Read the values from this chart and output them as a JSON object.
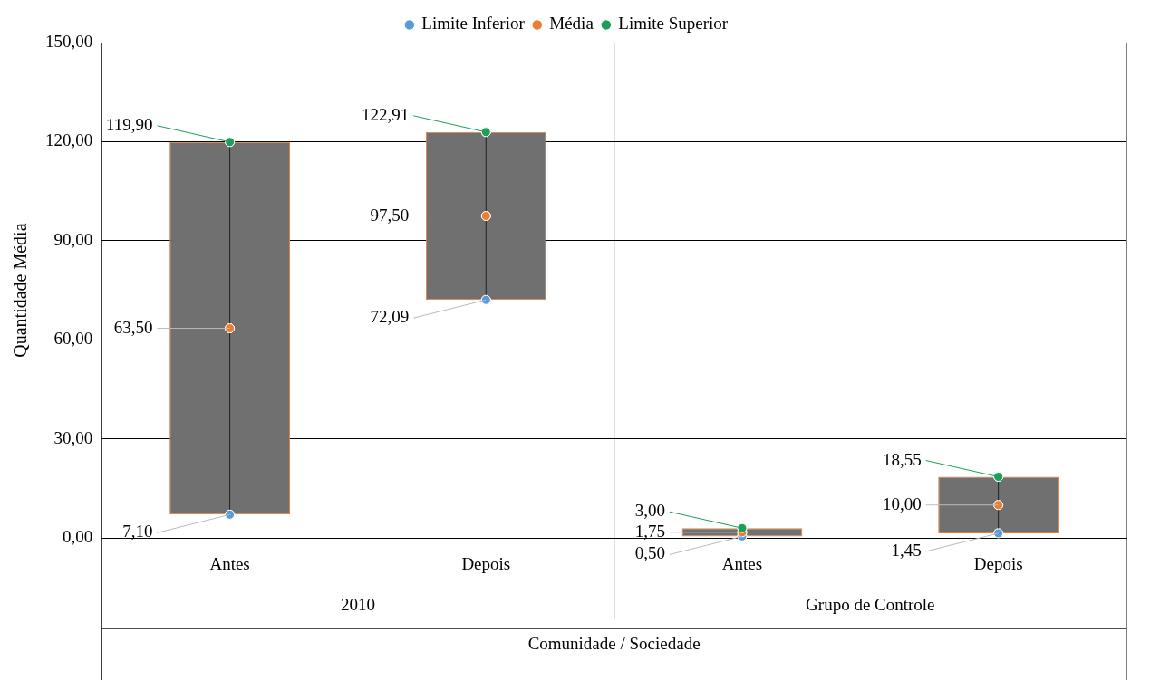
{
  "chart_data": {
    "type": "bar",
    "ylabel": "Quantidade Média",
    "xlabel": "Comunidade / Sociedade",
    "categories": [
      "Antes",
      "Depois",
      "Antes",
      "Depois"
    ],
    "annotations": [
      "2010",
      "Grupo de Controle"
    ],
    "ylim": [
      0,
      150
    ],
    "yticks": [
      {
        "value": 0,
        "label": "0,00"
      },
      {
        "value": 30,
        "label": "30,00"
      },
      {
        "value": 60,
        "label": "60,00"
      },
      {
        "value": 90,
        "label": "90,00"
      },
      {
        "value": 120,
        "label": "120,00"
      },
      {
        "value": 150,
        "label": "150,00"
      }
    ],
    "grid": "y",
    "legend": "top",
    "marker": "circle",
    "series": [
      {
        "color": "#707070",
        "base": [
          7.1,
          72.09,
          0.5,
          1.45
        ],
        "values": [
          112.8,
          50.82,
          2.5,
          17.1
        ]
      },
      {
        "type": "scatter",
        "name": "Limite Inferior",
        "color": "#5b9bd5",
        "values": [
          7.1,
          72.09,
          0.5,
          1.45
        ],
        "value_labels": [
          "7,10",
          "72,09",
          "0,50",
          "1,45"
        ]
      },
      {
        "type": "scatter",
        "name": "Média",
        "color": "#ed7d31",
        "values": [
          63.5,
          97.5,
          1.75,
          10.0
        ],
        "value_labels": [
          "63,50",
          "97,50",
          "1,75",
          "10,00"
        ]
      },
      {
        "type": "scatter",
        "name": "Limite Superior",
        "color": "#1e9e5a",
        "values": [
          119.9,
          122.91,
          3.0,
          18.55
        ],
        "value_labels": [
          "119,90",
          "122,91",
          "3,00",
          "18,55"
        ]
      }
    ]
  }
}
